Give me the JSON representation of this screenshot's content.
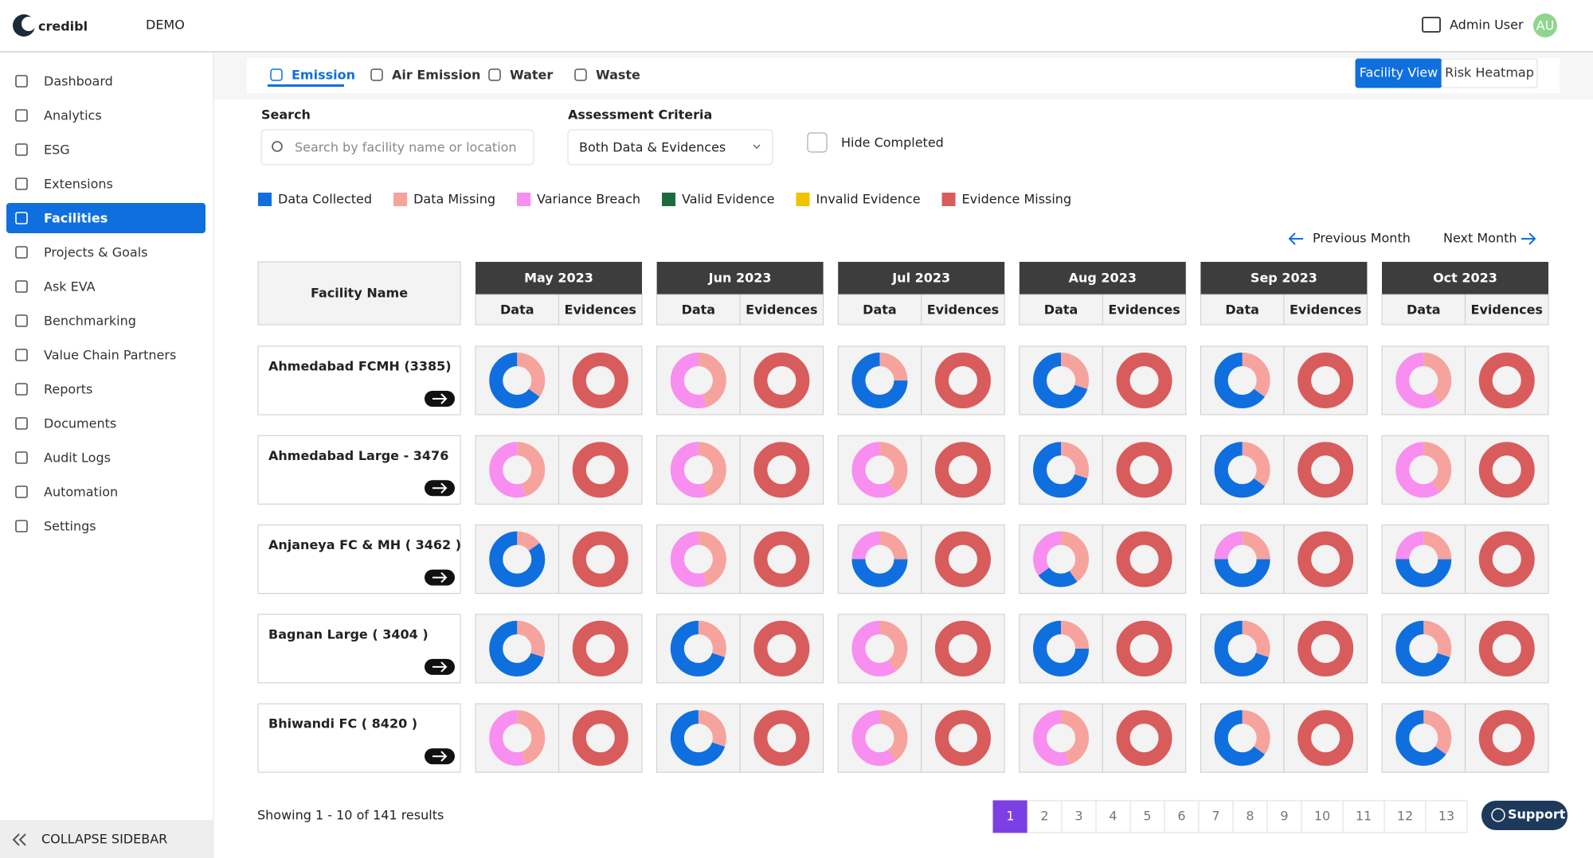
{
  "brand": "credibl",
  "env": "DEMO",
  "user": {
    "name": "Admin User",
    "initials": "AU"
  },
  "sidebar": {
    "items": [
      "Dashboard",
      "Analytics",
      "ESG",
      "Extensions",
      "Facilities",
      "Projects & Goals",
      "Ask EVA",
      "Benchmarking",
      "Value Chain Partners",
      "Reports",
      "Documents",
      "Audit Logs",
      "Automation",
      "Settings"
    ],
    "active": 4,
    "collapse": "COLLAPSE SIDEBAR"
  },
  "tabs": {
    "items": [
      "Emission",
      "Air Emission",
      "Water",
      "Waste"
    ],
    "active": 0
  },
  "views": {
    "items": [
      "Facility View",
      "Risk Heatmap"
    ],
    "active": 0
  },
  "filters": {
    "search_label": "Search",
    "search_placeholder": "Search by facility name or location",
    "criteria_label": "Assessment Criteria",
    "criteria_value": "Both Data & Evidences",
    "hide_completed": "Hide Completed"
  },
  "legend": [
    {
      "name": "Data Collected",
      "color": "#0f6fde"
    },
    {
      "name": "Data Missing",
      "color": "#f6a39e"
    },
    {
      "name": "Variance Breach",
      "color": "#f88ef0"
    },
    {
      "name": "Valid Evidence",
      "color": "#1d6b3c"
    },
    {
      "name": "Invalid Evidence",
      "color": "#f0c300"
    },
    {
      "name": "Evidence Missing",
      "color": "#d85c5c"
    }
  ],
  "nav": {
    "prev": "Previous Month",
    "next": "Next Month"
  },
  "table": {
    "facility_header": "Facility Name",
    "months": [
      "May 2023",
      "Jun 2023",
      "Jul 2023",
      "Aug 2023",
      "Sep 2023",
      "Oct 2023"
    ],
    "sub_headers": [
      "Data",
      "Evidences"
    ],
    "rows": [
      {
        "name": "Ahmedabad FCMH (3385)",
        "data": [
          [
            65,
            35,
            0
          ],
          [
            0,
            45,
            55
          ],
          [
            75,
            25,
            0
          ],
          [
            70,
            30,
            0
          ],
          [
            65,
            35,
            0
          ],
          [
            0,
            40,
            60
          ]
        ],
        "evidences": [
          [
            0,
            0,
            100
          ],
          [
            0,
            0,
            100
          ],
          [
            0,
            0,
            100
          ],
          [
            0,
            0,
            100
          ],
          [
            0,
            0,
            100
          ],
          [
            0,
            0,
            100
          ]
        ]
      },
      {
        "name": "Ahmedabad Large - 3476",
        "data": [
          [
            0,
            45,
            55
          ],
          [
            0,
            45,
            55
          ],
          [
            0,
            40,
            60
          ],
          [
            70,
            30,
            0
          ],
          [
            65,
            35,
            0
          ],
          [
            0,
            40,
            60
          ]
        ],
        "evidences": [
          [
            0,
            0,
            100
          ],
          [
            0,
            0,
            100
          ],
          [
            0,
            0,
            100
          ],
          [
            0,
            0,
            100
          ],
          [
            0,
            0,
            100
          ],
          [
            0,
            0,
            100
          ]
        ]
      },
      {
        "name": "Anjaneya FC & MH ( 3462 )",
        "data": [
          [
            85,
            15,
            0
          ],
          [
            0,
            45,
            55
          ],
          [
            50,
            25,
            25
          ],
          [
            25,
            40,
            35
          ],
          [
            50,
            25,
            25
          ],
          [
            50,
            25,
            25
          ]
        ],
        "evidences": [
          [
            0,
            0,
            100
          ],
          [
            0,
            0,
            100
          ],
          [
            0,
            0,
            100
          ],
          [
            0,
            0,
            100
          ],
          [
            0,
            0,
            100
          ],
          [
            0,
            0,
            100
          ]
        ]
      },
      {
        "name": "Bagnan Large ( 3404 )",
        "data": [
          [
            70,
            30,
            0
          ],
          [
            70,
            30,
            0
          ],
          [
            0,
            40,
            60
          ],
          [
            75,
            25,
            0
          ],
          [
            70,
            30,
            0
          ],
          [
            70,
            30,
            0
          ]
        ],
        "evidences": [
          [
            0,
            0,
            100
          ],
          [
            0,
            0,
            100
          ],
          [
            0,
            0,
            100
          ],
          [
            0,
            0,
            100
          ],
          [
            0,
            0,
            100
          ],
          [
            0,
            0,
            100
          ]
        ]
      },
      {
        "name": "Bhiwandi FC ( 8420 )",
        "data": [
          [
            0,
            45,
            55
          ],
          [
            70,
            30,
            0
          ],
          [
            0,
            40,
            60
          ],
          [
            0,
            45,
            55
          ],
          [
            65,
            35,
            0
          ],
          [
            65,
            35,
            0
          ]
        ],
        "evidences": [
          [
            0,
            0,
            100
          ],
          [
            0,
            0,
            100
          ],
          [
            0,
            0,
            100
          ],
          [
            0,
            0,
            100
          ],
          [
            0,
            0,
            100
          ],
          [
            0,
            0,
            100
          ]
        ]
      }
    ]
  },
  "footer": {
    "showing": "Showing 1 - 10 of 141 results",
    "pages": [
      1,
      2,
      3,
      4,
      5,
      6,
      7,
      8,
      9,
      10,
      11,
      12,
      13
    ],
    "active": 0,
    "support": "Support"
  }
}
